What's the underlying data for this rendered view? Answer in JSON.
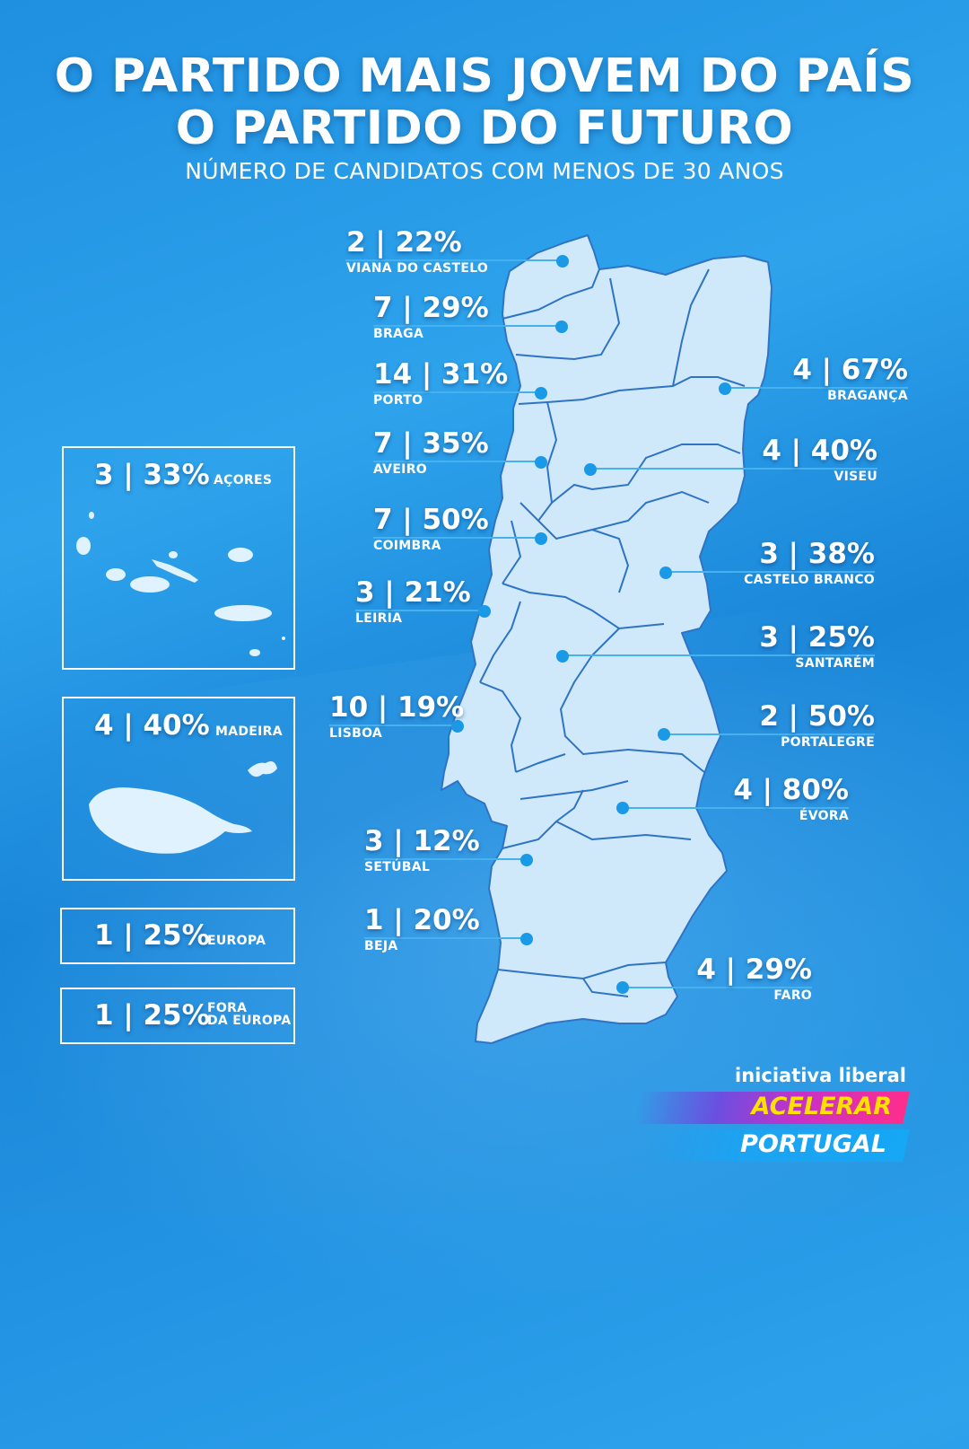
{
  "header": {
    "title_line1": "O PARTIDO MAIS JOVEM DO PAÍS",
    "title_line2": "O PARTIDO DO FUTURO",
    "subtitle": "NÚMERO DE CANDIDATOS COM MENOS DE 30 ANOS"
  },
  "districts": [
    {
      "name": "VIANA DO CASTELO",
      "value": "2 | 22%"
    },
    {
      "name": "BRAGA",
      "value": "7 | 29%"
    },
    {
      "name": "PORTO",
      "value": "14 | 31%"
    },
    {
      "name": "AVEIRO",
      "value": "7 | 35%"
    },
    {
      "name": "COIMBRA",
      "value": "7 | 50%"
    },
    {
      "name": "LEIRIA",
      "value": "3 | 21%"
    },
    {
      "name": "LISBOA",
      "value": "10 | 19%"
    },
    {
      "name": "SETÚBAL",
      "value": "3 | 12%"
    },
    {
      "name": "BEJA",
      "value": "1 | 20%"
    },
    {
      "name": "BRAGANÇA",
      "value": "4 | 67%"
    },
    {
      "name": "VISEU",
      "value": "4 | 40%"
    },
    {
      "name": "CASTELO BRANCO",
      "value": "3 | 38%"
    },
    {
      "name": "SANTARÉM",
      "value": "3 | 25%"
    },
    {
      "name": "PORTALEGRE",
      "value": "2 | 50%"
    },
    {
      "name": "ÉVORA",
      "value": "4 | 80%"
    },
    {
      "name": "FARO",
      "value": "4 | 29%"
    }
  ],
  "islands": {
    "acores": {
      "value": "3 | 33%",
      "name": "AÇORES"
    },
    "madeira": {
      "value": "4 | 40%",
      "name": "MADEIRA"
    }
  },
  "abroad": {
    "europa": {
      "value": "1 | 25%",
      "name": "EUROPA"
    },
    "fora": {
      "value": "1 | 25%",
      "name_line1": "FORA",
      "name_line2": "DA EUROPA"
    }
  },
  "brand": {
    "party": "iniciativa liberal",
    "slogan1": "ACELERAR",
    "slogan2": "PORTUGAL"
  },
  "colors": {
    "background": "#2196e3",
    "map_fill": "#cfe9fb",
    "map_border": "#2f74c4",
    "leader_line": "#47b1ee",
    "slogan_yellow": "#ffe000"
  }
}
